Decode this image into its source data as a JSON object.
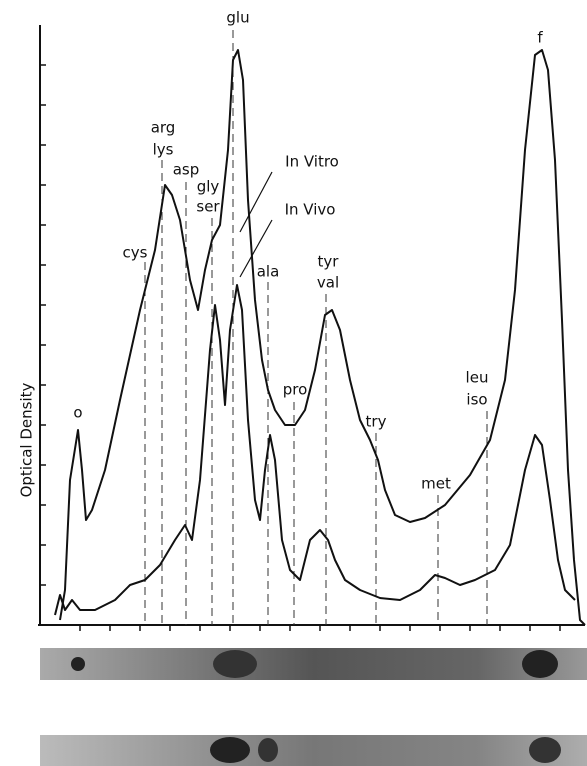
{
  "axis_label": "Optical Density",
  "peaks": [
    {
      "id": "glu",
      "label": "glu"
    },
    {
      "id": "f",
      "label": "f"
    },
    {
      "id": "arg",
      "label": "arg"
    },
    {
      "id": "lys",
      "label": "lys"
    },
    {
      "id": "asp",
      "label": "asp"
    },
    {
      "id": "gly",
      "label": "gly"
    },
    {
      "id": "ser",
      "label": "ser"
    },
    {
      "id": "cys",
      "label": "cys"
    },
    {
      "id": "ala",
      "label": "ala"
    },
    {
      "id": "tyr",
      "label": "tyr"
    },
    {
      "id": "val",
      "label": "val"
    },
    {
      "id": "o",
      "label": "o"
    },
    {
      "id": "pro",
      "label": "pro"
    },
    {
      "id": "try",
      "label": "try"
    },
    {
      "id": "leu",
      "label": "leu"
    },
    {
      "id": "iso",
      "label": "iso"
    },
    {
      "id": "met",
      "label": "met"
    }
  ],
  "curves": [
    {
      "label": "In Vitro"
    },
    {
      "label": "In Vivo"
    }
  ]
}
